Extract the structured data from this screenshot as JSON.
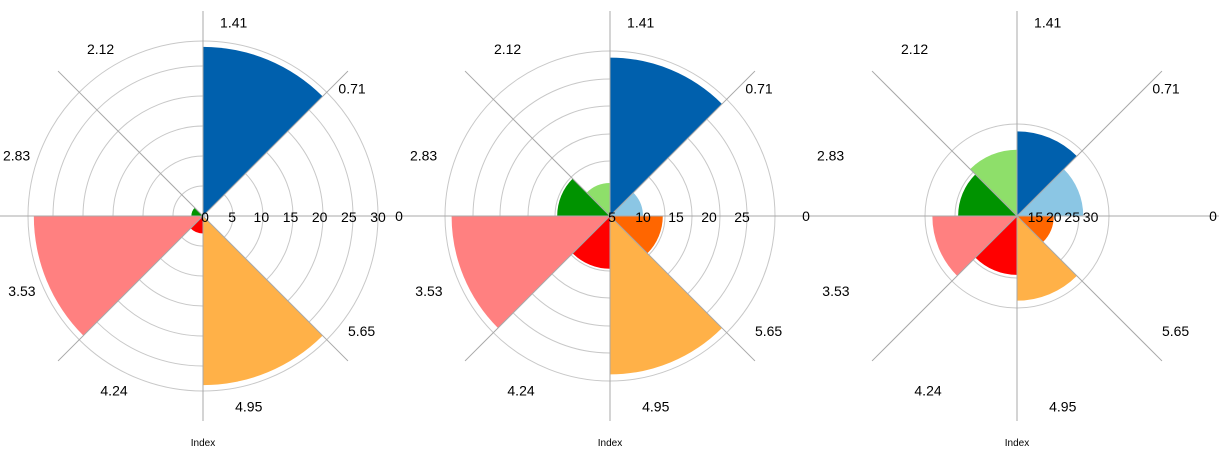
{
  "chart_data": [
    {
      "type": "polar-bar",
      "xlabel": "Index",
      "radial_ticks": [
        "0",
        "5",
        "10",
        "15",
        "20",
        "25",
        "30"
      ],
      "radial_range": [
        0,
        30
      ],
      "angle_ticks": [
        "0",
        "0.71",
        "1.41",
        "2.12",
        "2.83",
        "3.53",
        "4.24",
        "4.95",
        "5.65"
      ],
      "bars": [
        {
          "start_deg": 0,
          "end_deg": 45,
          "value": 0,
          "color": "#8bc6e4"
        },
        {
          "start_deg": 45,
          "end_deg": 90,
          "value": 29,
          "color": "#0060ad"
        },
        {
          "start_deg": 90,
          "end_deg": 135,
          "value": 0,
          "color": "#8edf6a"
        },
        {
          "start_deg": 135,
          "end_deg": 180,
          "value": 2,
          "color": "#009300"
        },
        {
          "start_deg": 180,
          "end_deg": 225,
          "value": 29,
          "color": "#ff8080"
        },
        {
          "start_deg": 225,
          "end_deg": 270,
          "value": 3,
          "color": "#ff0000"
        },
        {
          "start_deg": 270,
          "end_deg": 315,
          "value": 29,
          "color": "#ffb148"
        },
        {
          "start_deg": 315,
          "end_deg": 360,
          "value": 0,
          "color": "#ff6600"
        }
      ]
    },
    {
      "type": "polar-bar",
      "xlabel": "Index",
      "radial_ticks": [
        "5",
        "10",
        "15",
        "20",
        "25"
      ],
      "radial_range": [
        5,
        30
      ],
      "angle_ticks": [
        "0",
        "0.71",
        "1.41",
        "2.12",
        "2.83",
        "3.53",
        "4.24",
        "4.95",
        "5.65"
      ],
      "bars": [
        {
          "start_deg": 0,
          "end_deg": 45,
          "value": 10,
          "color": "#8bc6e4"
        },
        {
          "start_deg": 45,
          "end_deg": 90,
          "value": 29,
          "color": "#0060ad"
        },
        {
          "start_deg": 90,
          "end_deg": 135,
          "value": 10,
          "color": "#8edf6a"
        },
        {
          "start_deg": 135,
          "end_deg": 180,
          "value": 13,
          "color": "#009300"
        },
        {
          "start_deg": 180,
          "end_deg": 225,
          "value": 29,
          "color": "#ff8080"
        },
        {
          "start_deg": 225,
          "end_deg": 270,
          "value": 13,
          "color": "#ff0000"
        },
        {
          "start_deg": 270,
          "end_deg": 315,
          "value": 29,
          "color": "#ffb148"
        },
        {
          "start_deg": 315,
          "end_deg": 360,
          "value": 13,
          "color": "#ff6600"
        }
      ]
    },
    {
      "type": "polar-bar",
      "xlabel": "Index",
      "radial_ticks": [
        "15",
        "20",
        "25",
        "30"
      ],
      "radial_range": [
        10,
        35
      ],
      "angle_ticks": [
        "0",
        "0.71",
        "1.41",
        "2.12",
        "2.83",
        "3.53",
        "4.24",
        "4.95",
        "5.65"
      ],
      "bars": [
        {
          "start_deg": 0,
          "end_deg": 45,
          "value": 28,
          "color": "#8bc6e4"
        },
        {
          "start_deg": 45,
          "end_deg": 90,
          "value": 33,
          "color": "#0060ad"
        },
        {
          "start_deg": 90,
          "end_deg": 135,
          "value": 28,
          "color": "#8edf6a"
        },
        {
          "start_deg": 135,
          "end_deg": 180,
          "value": 26,
          "color": "#009300"
        },
        {
          "start_deg": 180,
          "end_deg": 225,
          "value": 33,
          "color": "#ff8080"
        },
        {
          "start_deg": 225,
          "end_deg": 270,
          "value": 26,
          "color": "#ff0000"
        },
        {
          "start_deg": 270,
          "end_deg": 315,
          "value": 33,
          "color": "#ffb148"
        },
        {
          "start_deg": 315,
          "end_deg": 360,
          "value": 20,
          "color": "#ff6600"
        }
      ]
    }
  ]
}
